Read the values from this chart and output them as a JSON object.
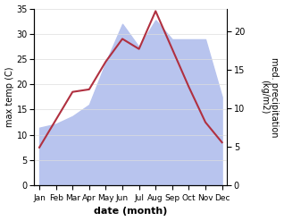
{
  "months": [
    "Jan",
    "Feb",
    "Mar",
    "Apr",
    "May",
    "Jun",
    "Jul",
    "Aug",
    "Sep",
    "Oct",
    "Nov",
    "Dec"
  ],
  "temp": [
    7.5,
    13.0,
    18.5,
    19.0,
    24.5,
    29.0,
    27.0,
    34.5,
    27.0,
    19.5,
    12.5,
    8.5
  ],
  "precip": [
    7.5,
    8.0,
    9.0,
    10.5,
    16.0,
    21.0,
    18.0,
    21.5,
    19.0,
    19.0,
    19.0,
    11.5
  ],
  "temp_color": "#b03040",
  "precip_fill_color": "#b8c4ee",
  "ylabel_left": "max temp (C)",
  "ylabel_right": "med. precipitation\n(kg/m2)",
  "xlabel": "date (month)",
  "ylim_left": [
    0,
    35
  ],
  "ylim_right": [
    0,
    23
  ],
  "yticks_left": [
    0,
    5,
    10,
    15,
    20,
    25,
    30,
    35
  ],
  "yticks_right": [
    0,
    5,
    10,
    15,
    20
  ],
  "bg_color": "#ffffff",
  "grid_color": "#dddddd"
}
